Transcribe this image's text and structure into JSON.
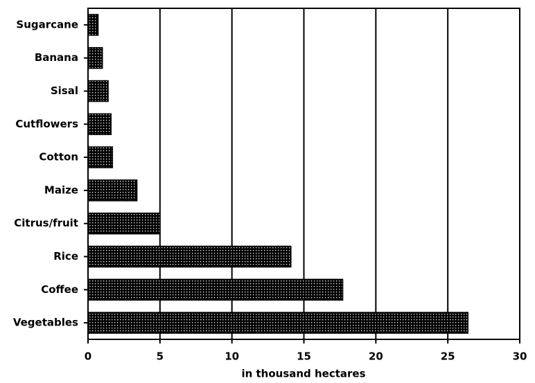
{
  "chart_data": {
    "type": "barh",
    "x_label": "in thousand hectares",
    "categories": [
      "Sugarcane",
      "Banana",
      "Sisal",
      "Cutflowers",
      "Cotton",
      "Maize",
      "Citrus/fruit",
      "Rice",
      "Coffee",
      "Vegetables"
    ],
    "values": [
      0.7,
      1.0,
      1.4,
      1.6,
      1.7,
      3.4,
      5.0,
      14.1,
      17.7,
      26.4
    ],
    "color": "#000000",
    "xlim": [
      0,
      30
    ],
    "xticks": [
      0,
      5,
      10,
      15,
      20,
      25,
      30
    ],
    "grid": true
  }
}
